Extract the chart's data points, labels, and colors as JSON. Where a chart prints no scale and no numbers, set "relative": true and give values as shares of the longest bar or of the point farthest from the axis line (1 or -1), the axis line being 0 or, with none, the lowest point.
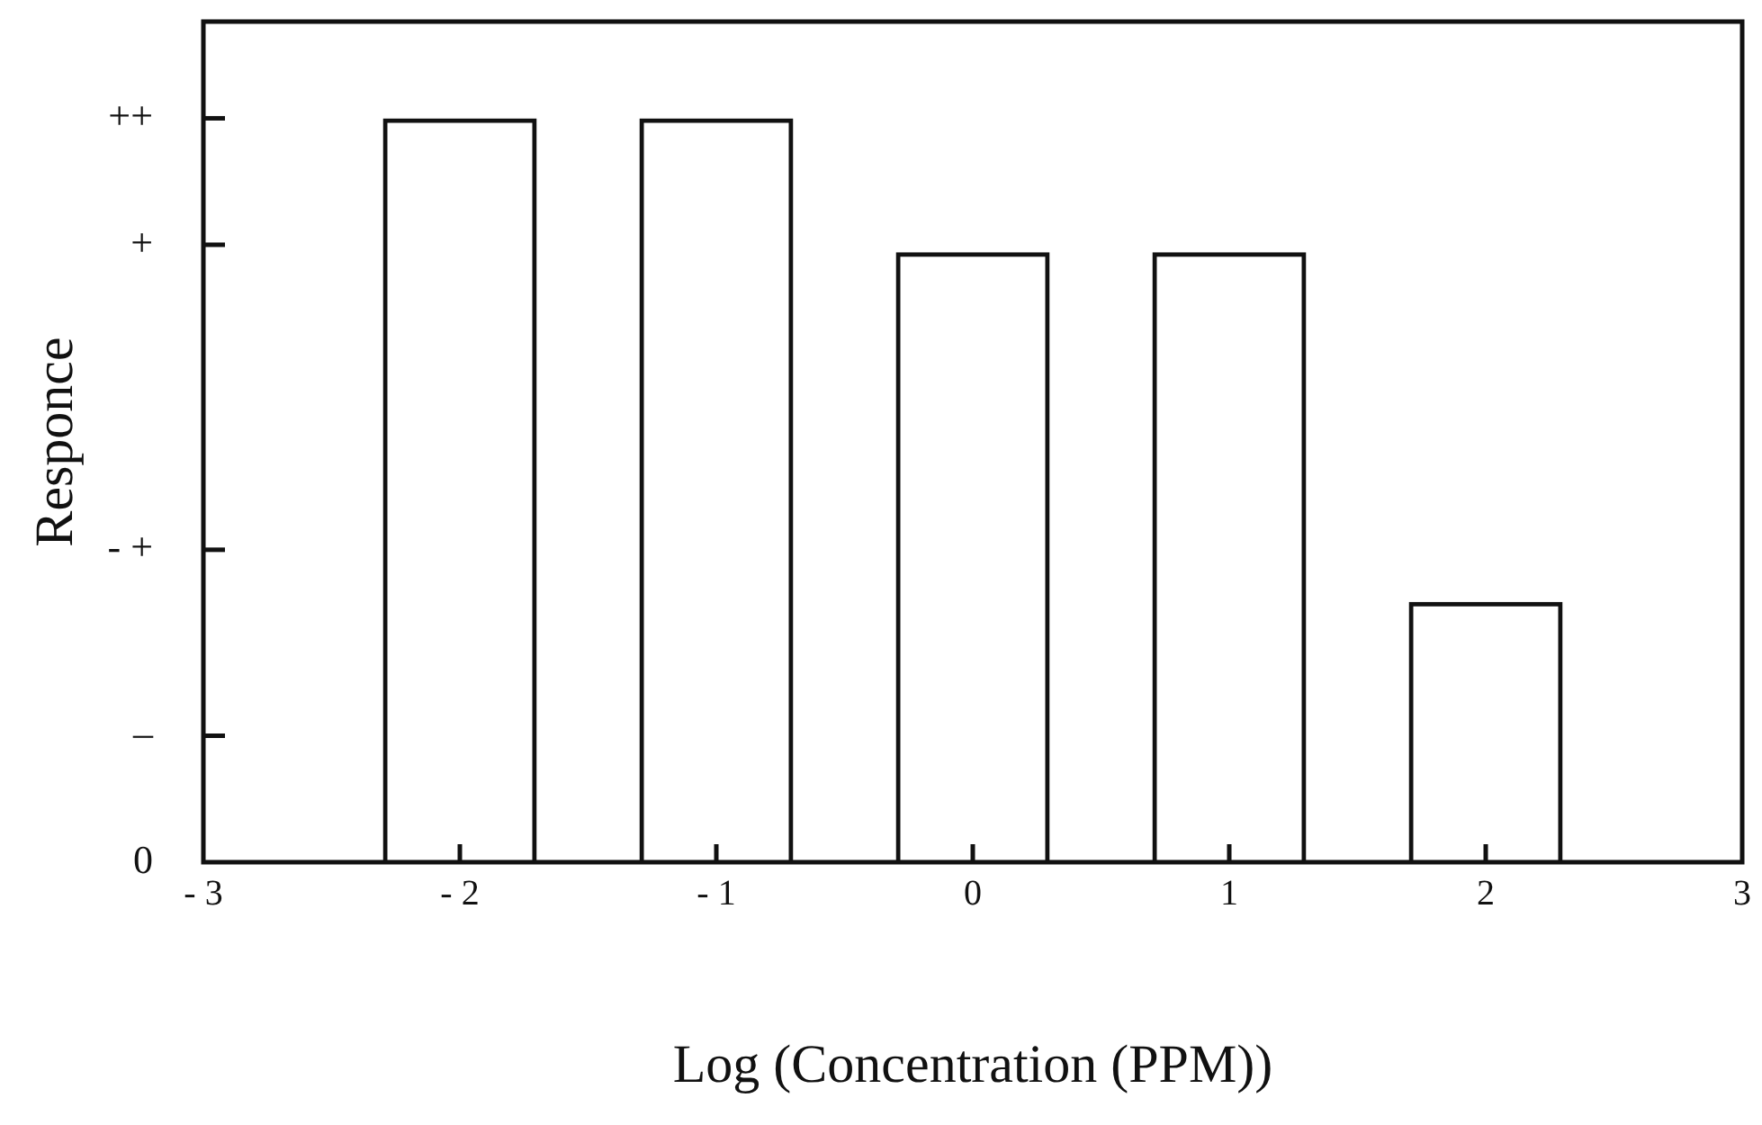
{
  "chart_data": {
    "type": "bar",
    "xlabel": "Log (Concentration (PPM))",
    "ylabel": "Responce",
    "x": [
      -2,
      -1,
      0,
      1,
      2
    ],
    "values": [
      1,
      1,
      0.82,
      0.82,
      0.35
    ],
    "relative": true,
    "color": "#111111",
    "xlim": [
      -3,
      3
    ],
    "xticks": [
      {
        "value": -3,
        "label": "- 3"
      },
      {
        "value": -2,
        "label": "- 2"
      },
      {
        "value": -1,
        "label": "- 1"
      },
      0,
      1,
      2,
      3
    ],
    "annotations": [
      "0",
      "–",
      "- +",
      "+",
      "++"
    ],
    "grid": false,
    "legend": false
  }
}
